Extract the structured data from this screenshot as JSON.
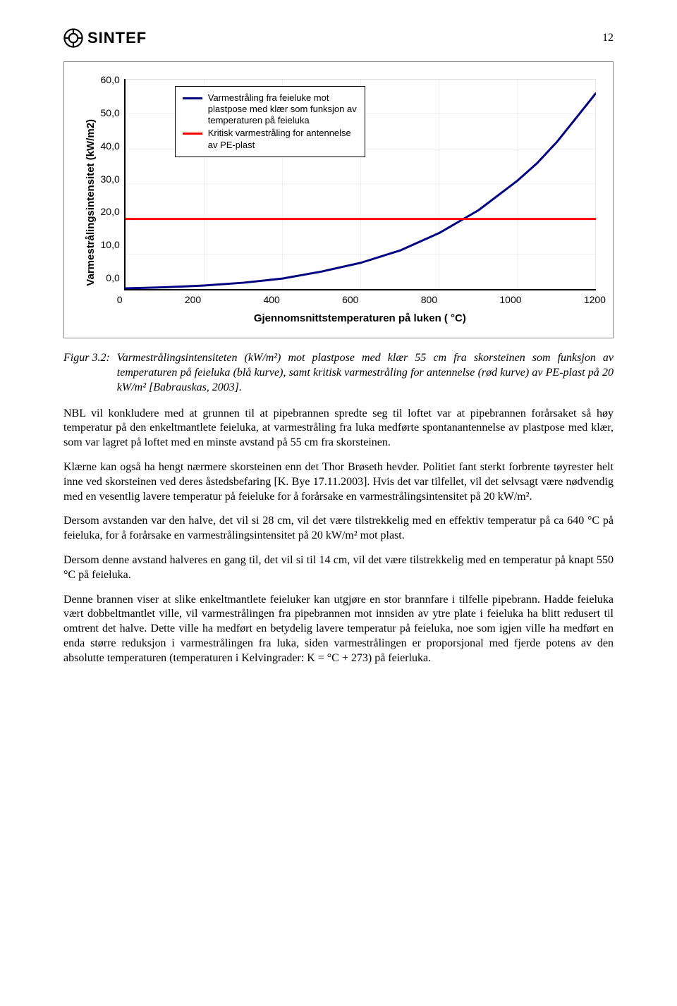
{
  "page_number": "12",
  "logo_text": "SINTEF",
  "chart": {
    "type": "line",
    "y_title": "Varmestrålingsintensitet (kW/m2)",
    "x_title": "Gjennomsnittstemperaturen på luken ( °C)",
    "xlim": [
      0,
      1200
    ],
    "ylim": [
      0,
      60
    ],
    "x_ticks": [
      "0",
      "200",
      "400",
      "600",
      "800",
      "1000",
      "1200"
    ],
    "y_ticks": [
      "60,0",
      "50,0",
      "40,0",
      "30,0",
      "20,0",
      "10,0",
      "0,0"
    ],
    "grid_color": "#c0c0c0",
    "background_color": "#ffffff",
    "series": [
      {
        "label": "Varmestråling fra feieluke mot plastpose med klær som funksjon av temperaturen på feieluka",
        "color": "#000080",
        "line_width": 3,
        "points": [
          [
            0,
            0.2
          ],
          [
            100,
            0.5
          ],
          [
            200,
            1.0
          ],
          [
            300,
            1.8
          ],
          [
            400,
            3.0
          ],
          [
            500,
            5.0
          ],
          [
            600,
            7.5
          ],
          [
            700,
            11.0
          ],
          [
            800,
            16.0
          ],
          [
            900,
            22.5
          ],
          [
            1000,
            31.0
          ],
          [
            1050,
            36.0
          ],
          [
            1100,
            42.0
          ],
          [
            1150,
            49.0
          ],
          [
            1200,
            56.0
          ]
        ]
      },
      {
        "label": "Kritisk varmestråling for antennelse av PE-plast",
        "color": "#ff0000",
        "line_width": 3,
        "points": [
          [
            0,
            20
          ],
          [
            1200,
            20
          ]
        ]
      }
    ]
  },
  "figure_caption": {
    "label": "Figur 3.2:",
    "text": "Varmestrålingsintensiteten (kW/m²) mot plastpose med klær 55 cm fra skorsteinen som funksjon av temperaturen på feieluka (blå kurve), samt kritisk varmestråling for antennelse (rød kurve) av PE-plast på 20 kW/m² [Babrauskas, 2003]."
  },
  "paragraphs": {
    "p1": "NBL vil konkludere med at grunnen til at pipebrannen spredte seg til loftet var at pipebrannen forårsaket så høy temperatur på den enkeltmantlete feieluka, at varmestråling fra luka medførte spontanantennelse av plastpose med klær, som var lagret på loftet med en minste avstand på 55 cm fra skorsteinen.",
    "p2": "Klærne kan også ha hengt nærmere skorsteinen enn det Thor Brøseth hevder. Politiet fant sterkt forbrente tøyrester helt inne ved skorsteinen ved deres åstedsbefaring [K. Bye 17.11.2003]. Hvis det var tilfellet, vil det selvsagt være nødvendig med en vesentlig lavere temperatur på feieluke for å forårsake en varmestrålingsintensitet på 20 kW/m².",
    "p3": "Dersom avstanden var den halve, det vil si 28 cm, vil det være tilstrekkelig med en effektiv temperatur på ca 640 °C på feieluka, for å forårsake en varmestrålingsintensitet på 20 kW/m² mot plast.",
    "p4": "Dersom denne avstand halveres en gang til, det vil si til 14 cm, vil det være tilstrekkelig med en temperatur på knapt 550 °C på feieluka.",
    "p5": "Denne brannen viser at slike enkeltmantlete feieluker kan utgjøre en stor brannfare i tilfelle pipebrann. Hadde feieluka vært dobbeltmantlet ville, vil varmestrålingen fra pipebrannen mot innsiden av ytre plate i feieluka ha blitt redusert til omtrent det halve. Dette ville ha medført en betydelig lavere temperatur på feieluka, noe som igjen ville ha medført en enda større reduksjon i varmestrålingen fra luka, siden varmestrålingen er proporsjonal med fjerde potens av den absolutte temperaturen (temperaturen i Kelvingrader: K = °C + 273) på feierluka."
  }
}
